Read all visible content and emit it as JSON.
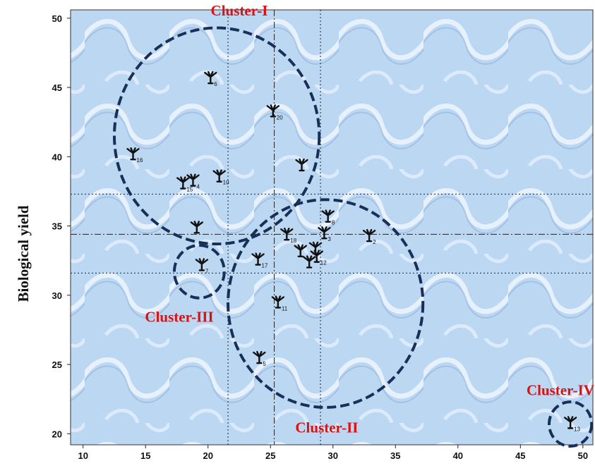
{
  "chart_data": {
    "type": "scatter",
    "title": "",
    "xlabel": "",
    "ylabel": "Biological yield",
    "xlim": [
      9,
      50.8
    ],
    "ylim": [
      19.2,
      50.6
    ],
    "xticks": [
      "10",
      "15",
      "20",
      "25",
      "30",
      "35",
      "40",
      "45",
      "50"
    ],
    "yticks": [
      "20",
      "25",
      "30",
      "35",
      "40",
      "45",
      "50"
    ],
    "colors": {
      "cluster": "#1a2e5a",
      "cluster_label": "#e01010",
      "marker": "#111111",
      "background": "#bcd7f2"
    },
    "points": [
      {
        "label": "6",
        "x": 20.2,
        "y": 45.3
      },
      {
        "label": "20",
        "x": 25.2,
        "y": 42.9
      },
      {
        "label": "16",
        "x": 14.0,
        "y": 39.8
      },
      {
        "label": "",
        "x": 27.5,
        "y": 39.0
      },
      {
        "label": "10",
        "x": 20.9,
        "y": 38.2
      },
      {
        "label": "15",
        "x": 18.0,
        "y": 37.7
      },
      {
        "label": "4",
        "x": 18.8,
        "y": 37.9
      },
      {
        "label": "",
        "x": 19.1,
        "y": 34.5
      },
      {
        "label": "8",
        "x": 29.6,
        "y": 35.3
      },
      {
        "label": "18",
        "x": 26.3,
        "y": 34.0
      },
      {
        "label": "3",
        "x": 29.3,
        "y": 34.1
      },
      {
        "label": "2",
        "x": 32.9,
        "y": 33.9
      },
      {
        "label": "",
        "x": 27.4,
        "y": 32.8
      },
      {
        "label": "",
        "x": 28.6,
        "y": 33.0
      },
      {
        "label": "12",
        "x": 28.7,
        "y": 32.4
      },
      {
        "label": "",
        "x": 28.1,
        "y": 32.0
      },
      {
        "label": "17",
        "x": 24.0,
        "y": 32.2
      },
      {
        "label": "7",
        "x": 19.5,
        "y": 31.8
      },
      {
        "label": "11",
        "x": 25.6,
        "y": 29.1
      },
      {
        "label": "5",
        "x": 24.1,
        "y": 25.1
      },
      {
        "label": "13",
        "x": 49.0,
        "y": 20.4
      }
    ],
    "reference_lines": {
      "vertical_dotted": [
        21.6,
        29.0
      ],
      "vertical_dashdot": [
        25.3
      ],
      "horizontal_dotted": [
        37.3,
        31.6
      ],
      "horizontal_dashdot": [
        34.4
      ]
    },
    "clusters": [
      {
        "name": "Cluster-I",
        "cx": 20.7,
        "cy": 41.5,
        "rx": 8.2,
        "ry": 7.8,
        "label_x": 22.5,
        "label_y": 50.6
      },
      {
        "name": "Cluster-II",
        "cx": 29.4,
        "cy": 29.4,
        "rx": 7.8,
        "ry": 7.5,
        "label_x": 29.5,
        "label_y": 20.5
      },
      {
        "name": "Cluster-III",
        "cx": 19.3,
        "cy": 31.7,
        "rx": 2.0,
        "ry": 1.9,
        "label_x": 17.7,
        "label_y": 28.5
      },
      {
        "name": "Cluster-IV",
        "cx": 49.0,
        "cy": 20.7,
        "rx": 1.7,
        "ry": 1.6,
        "label_x": 48.2,
        "label_y": 23.2
      }
    ]
  }
}
